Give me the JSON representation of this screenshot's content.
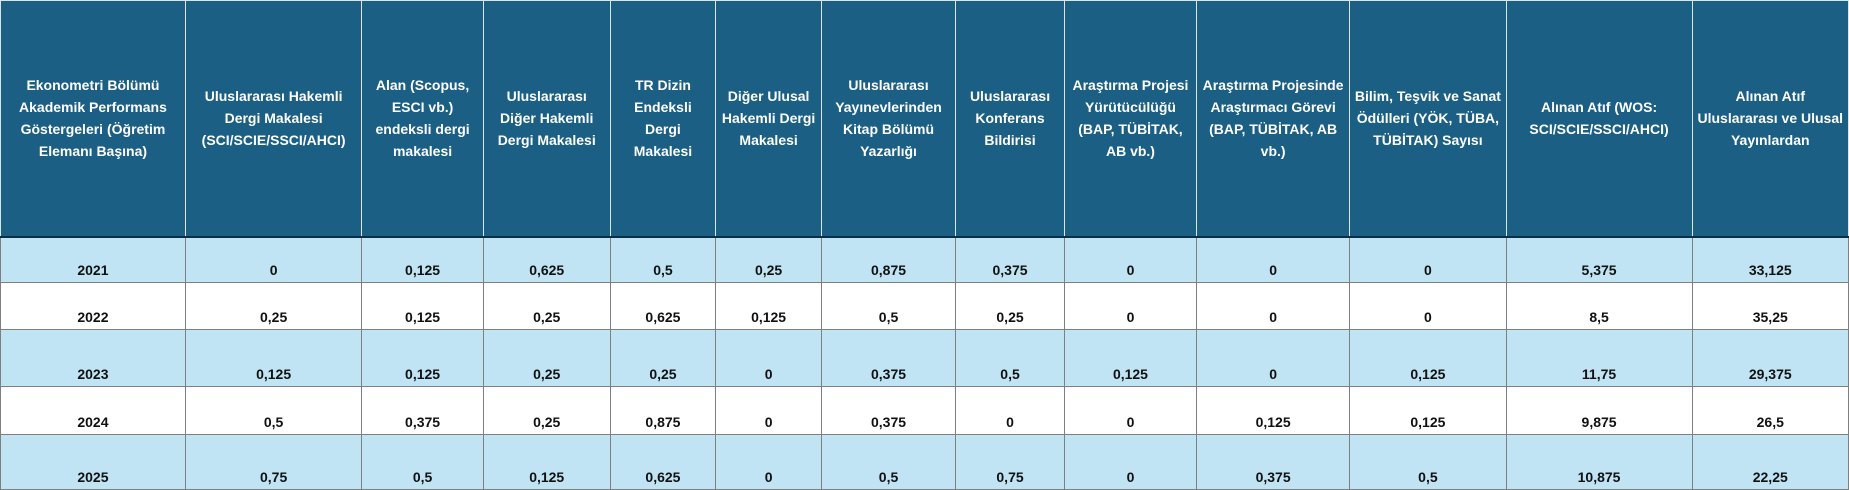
{
  "headers": [
    "Ekonometri Bölümü Akademik Performans Göstergeleri (Öğretim Elemanı Başına)",
    "Uluslararası Hakemli Dergi Makalesi (SCI/SCIE/SSCI/AHCI)",
    "Alan (Scopus, ESCI vb.) endeksli dergi makalesi",
    "Uluslararası Diğer Hakemli Dergi Makalesi",
    "TR Dizin Endeksli Dergi Makalesi",
    "Diğer Ulusal Hakemli Dergi Makalesi",
    "Uluslararası Yayınevlerinden Kitap Bölümü Yazarlığı",
    "Uluslararası Konferans Bildirisi",
    "Araştırma Projesi Yürütücülüğü (BAP, TÜBİTAK, AB vb.)",
    "Araştırma Projesinde Araştırmacı Görevi (BAP, TÜBİTAK, AB vb.)",
    "Bilim, Teşvik ve Sanat Ödülleri (YÖK, TÜBA, TÜBİTAK) Sayısı",
    "Alınan Atıf (WOS: SCI/SCIE/SSCI/AHCI)",
    "Alınan Atıf Uluslararası ve Ulusal Yayınlardan"
  ],
  "rows": [
    [
      "2021",
      "0",
      "0,125",
      "0,625",
      "0,5",
      "0,25",
      "0,875",
      "0,375",
      "0",
      "0",
      "0",
      "5,375",
      "33,125"
    ],
    [
      "2022",
      "0,25",
      "0,125",
      "0,25",
      "0,625",
      "0,125",
      "0,5",
      "0,25",
      "0",
      "0",
      "0",
      "8,5",
      "35,25"
    ],
    [
      "2023",
      "0,125",
      "0,125",
      "0,25",
      "0,25",
      "0",
      "0,375",
      "0,5",
      "0,125",
      "0",
      "0,125",
      "11,75",
      "29,375"
    ],
    [
      "2024",
      "0,5",
      "0,375",
      "0,25",
      "0,875",
      "0",
      "0,375",
      "0",
      "0",
      "0,125",
      "0,125",
      "9,875",
      "26,5"
    ],
    [
      "2025",
      "0,75",
      "0,5",
      "0,125",
      "0,625",
      "0",
      "0,5",
      "0,75",
      "0",
      "0,375",
      "0,5",
      "10,875",
      "22,25"
    ]
  ],
  "colors": {
    "header_bg": "#1b5f84",
    "header_text": "#ffffff",
    "band_row": "#c0e4f4",
    "plain_row": "#ffffff"
  }
}
